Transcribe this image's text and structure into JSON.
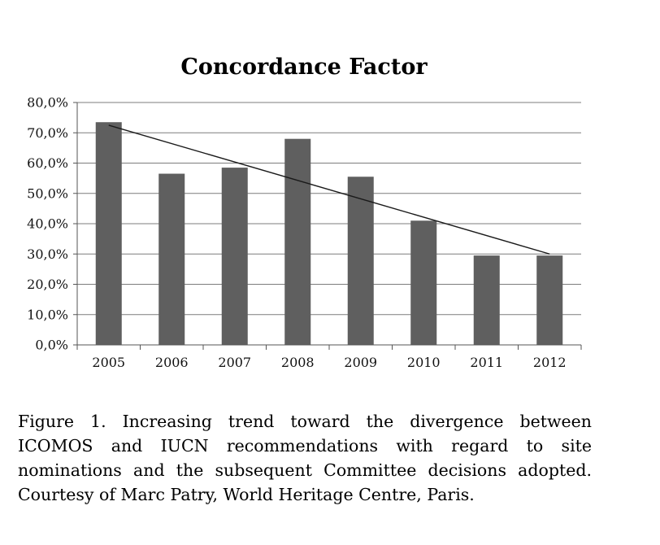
{
  "chart_data": {
    "type": "bar",
    "title": "Concordance Factor",
    "xlabel": "",
    "ylabel": "",
    "categories": [
      "2005",
      "2006",
      "2007",
      "2008",
      "2009",
      "2010",
      "2011",
      "2012"
    ],
    "values": [
      73.5,
      56.5,
      58.5,
      68.0,
      55.5,
      41.0,
      29.5,
      29.5
    ],
    "ylim": [
      0,
      80
    ],
    "yticks": [
      "0,0%",
      "10,0%",
      "20,0%",
      "30,0%",
      "40,0%",
      "50,0%",
      "60,0%",
      "70,0%",
      "80,0%"
    ],
    "grid": true,
    "trendline": {
      "type": "linear",
      "start": 72.5,
      "end": 30.0
    },
    "colors": {
      "bar": "#5f5f5f",
      "trend": "#1a1a1a",
      "grid": "#7d7d7d"
    }
  },
  "caption": "Figure 1. Increasing trend toward the divergence between ICOMOS and IUCN recommendations with regard to site nominations and the subsequent Committee decisions adopted. Courtesy of Marc Patry, World Heritage Centre, Paris."
}
